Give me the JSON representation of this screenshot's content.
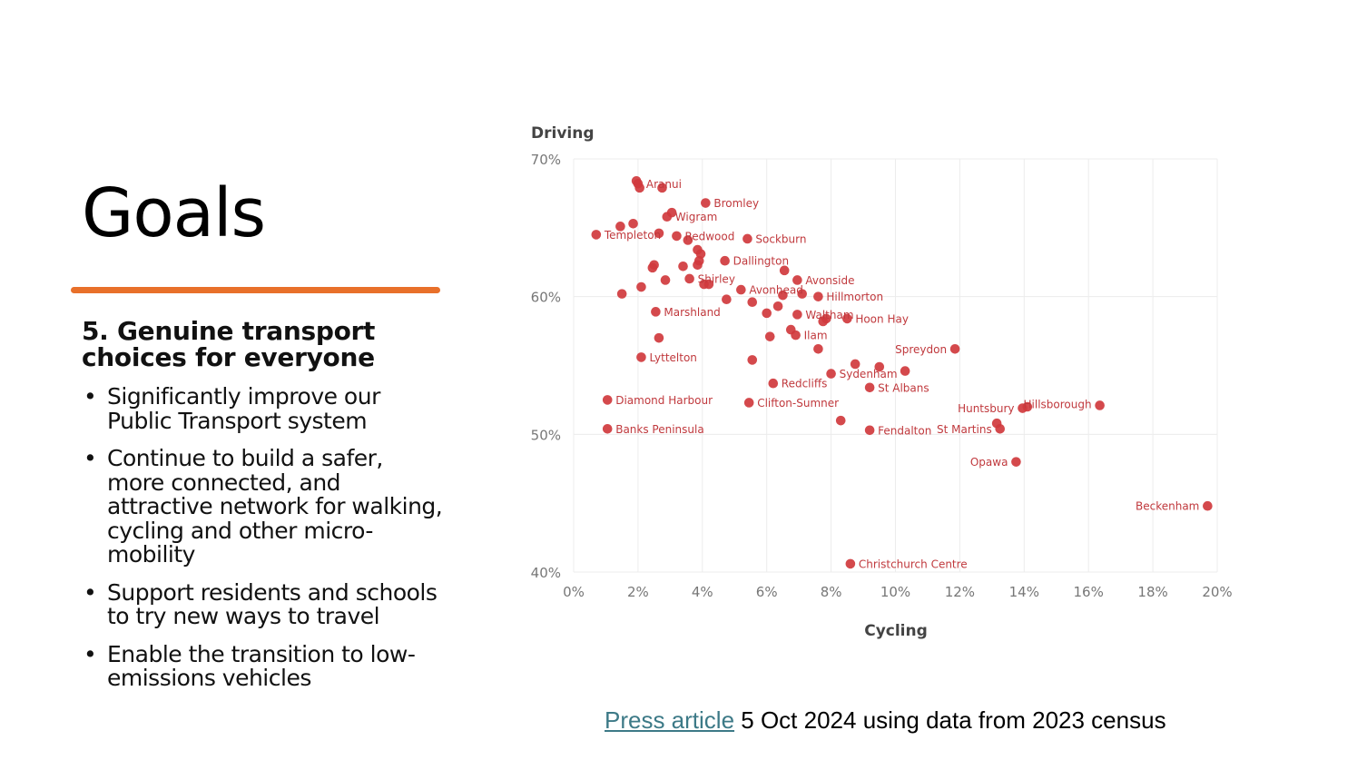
{
  "slide": {
    "title": "Goals",
    "accent_color": "#e8702a",
    "subheading": "5. Genuine transport choices for everyone",
    "bullets": [
      "Significantly improve our Public Transport system",
      "Continue to build a safer, more connected, and attractive network for walking, cycling and other micro-mobility",
      "Support residents and schools to try new ways to travel",
      "Enable the transition to low-emissions vehicles"
    ],
    "bullet_char": "•",
    "footer": {
      "link_text": "Press article",
      "rest_text": " 5 Oct 2024 using data from 2023 census",
      "link_color": "#3d7a87"
    }
  },
  "chart_data": {
    "type": "scatter",
    "title": "",
    "xlabel": "Cycling",
    "ylabel": "Driving",
    "xlim": [
      0,
      20
    ],
    "ylim": [
      40,
      70
    ],
    "x_ticks": [
      0,
      2,
      4,
      6,
      8,
      10,
      12,
      14,
      16,
      18,
      20
    ],
    "x_tick_labels": [
      "0%",
      "2%",
      "4%",
      "6%",
      "8%",
      "10%",
      "12%",
      "14%",
      "16%",
      "18%",
      "20%"
    ],
    "y_ticks": [
      40,
      50,
      60,
      70
    ],
    "y_tick_labels": [
      "40%",
      "50%",
      "60%",
      "70%"
    ],
    "grid": true,
    "marker_color": "#d0393d",
    "label_color": "#c0393d",
    "points": [
      {
        "label": "Aranui",
        "x": 2.0,
        "y": 68.2,
        "label_side": "right"
      },
      {
        "label": "",
        "x": 1.95,
        "y": 68.4
      },
      {
        "label": "",
        "x": 2.05,
        "y": 67.9
      },
      {
        "label": "",
        "x": 2.75,
        "y": 67.9
      },
      {
        "label": "Bromley",
        "x": 4.1,
        "y": 66.8,
        "label_side": "right"
      },
      {
        "label": "Wigram",
        "x": 2.9,
        "y": 65.8,
        "label_side": "right"
      },
      {
        "label": "",
        "x": 3.05,
        "y": 66.1
      },
      {
        "label": "",
        "x": 1.45,
        "y": 65.1
      },
      {
        "label": "",
        "x": 1.85,
        "y": 65.3
      },
      {
        "label": "Templeton",
        "x": 0.7,
        "y": 64.5,
        "label_side": "right"
      },
      {
        "label": "",
        "x": 2.65,
        "y": 64.6
      },
      {
        "label": "Redwood",
        "x": 3.2,
        "y": 64.4,
        "label_side": "right"
      },
      {
        "label": "",
        "x": 3.55,
        "y": 64.1
      },
      {
        "label": "Sockburn",
        "x": 5.4,
        "y": 64.2,
        "label_side": "right"
      },
      {
        "label": "",
        "x": 3.85,
        "y": 63.4
      },
      {
        "label": "",
        "x": 3.95,
        "y": 63.1
      },
      {
        "label": "",
        "x": 3.9,
        "y": 62.6
      },
      {
        "label": "",
        "x": 3.85,
        "y": 62.3
      },
      {
        "label": "Dallington",
        "x": 4.7,
        "y": 62.6,
        "label_side": "right"
      },
      {
        "label": "",
        "x": 2.5,
        "y": 62.3
      },
      {
        "label": "",
        "x": 2.45,
        "y": 62.1
      },
      {
        "label": "",
        "x": 3.4,
        "y": 62.2
      },
      {
        "label": "",
        "x": 6.55,
        "y": 61.9
      },
      {
        "label": "Shirley",
        "x": 3.6,
        "y": 61.3,
        "label_side": "right"
      },
      {
        "label": "",
        "x": 2.85,
        "y": 61.2
      },
      {
        "label": "",
        "x": 4.2,
        "y": 60.9
      },
      {
        "label": "",
        "x": 4.05,
        "y": 60.9
      },
      {
        "label": "Avonside",
        "x": 6.95,
        "y": 61.2,
        "label_side": "right"
      },
      {
        "label": "",
        "x": 2.1,
        "y": 60.7
      },
      {
        "label": "",
        "x": 1.5,
        "y": 60.2
      },
      {
        "label": "Avonhead",
        "x": 5.2,
        "y": 60.5,
        "label_side": "right"
      },
      {
        "label": "",
        "x": 6.5,
        "y": 60.1
      },
      {
        "label": "",
        "x": 7.1,
        "y": 60.2
      },
      {
        "label": "Hillmorton",
        "x": 7.6,
        "y": 60.0,
        "label_side": "right"
      },
      {
        "label": "",
        "x": 4.75,
        "y": 59.8
      },
      {
        "label": "",
        "x": 5.55,
        "y": 59.6
      },
      {
        "label": "",
        "x": 6.35,
        "y": 59.3
      },
      {
        "label": "Marshland",
        "x": 2.55,
        "y": 58.9,
        "label_side": "right"
      },
      {
        "label": "",
        "x": 6.0,
        "y": 58.8
      },
      {
        "label": "Waltham",
        "x": 6.95,
        "y": 58.7,
        "label_side": "right"
      },
      {
        "label": "",
        "x": 7.75,
        "y": 58.2
      },
      {
        "label": "",
        "x": 7.85,
        "y": 58.4
      },
      {
        "label": "Hoon Hay",
        "x": 8.5,
        "y": 58.4,
        "label_side": "right"
      },
      {
        "label": "",
        "x": 6.75,
        "y": 57.6
      },
      {
        "label": "Ilam",
        "x": 6.9,
        "y": 57.2,
        "label_side": "right"
      },
      {
        "label": "",
        "x": 6.1,
        "y": 57.1
      },
      {
        "label": "",
        "x": 2.65,
        "y": 57.0
      },
      {
        "label": "",
        "x": 7.6,
        "y": 56.2
      },
      {
        "label": "Spreydon",
        "x": 11.85,
        "y": 56.2,
        "label_side": "left"
      },
      {
        "label": "Lyttelton",
        "x": 2.1,
        "y": 55.6,
        "label_side": "right"
      },
      {
        "label": "",
        "x": 5.55,
        "y": 55.4
      },
      {
        "label": "",
        "x": 8.75,
        "y": 55.1
      },
      {
        "label": "",
        "x": 9.5,
        "y": 54.9
      },
      {
        "label": "Sydenham",
        "x": 8.0,
        "y": 54.4,
        "label_side": "right"
      },
      {
        "label": "",
        "x": 10.3,
        "y": 54.6
      },
      {
        "label": "Redcliffs",
        "x": 6.2,
        "y": 53.7,
        "label_side": "right"
      },
      {
        "label": "St Albans",
        "x": 9.2,
        "y": 53.4,
        "label_side": "right"
      },
      {
        "label": "Diamond Harbour",
        "x": 1.05,
        "y": 52.5,
        "label_side": "right"
      },
      {
        "label": "Clifton-Sumner",
        "x": 5.45,
        "y": 52.3,
        "label_side": "right"
      },
      {
        "label": "Hillsborough",
        "x": 16.35,
        "y": 52.1,
        "label_side": "left-above"
      },
      {
        "label": "Huntsbury",
        "x": 13.95,
        "y": 51.9,
        "label_side": "left"
      },
      {
        "label": "",
        "x": 14.1,
        "y": 52.0
      },
      {
        "label": "",
        "x": 8.3,
        "y": 51.0
      },
      {
        "label": "",
        "x": 13.15,
        "y": 50.8
      },
      {
        "label": "St Martins",
        "x": 13.25,
        "y": 50.4,
        "label_side": "left"
      },
      {
        "label": "Banks Peninsula",
        "x": 1.05,
        "y": 50.4,
        "label_side": "right"
      },
      {
        "label": "Fendalton",
        "x": 9.2,
        "y": 50.3,
        "label_side": "right"
      },
      {
        "label": "Opawa",
        "x": 13.75,
        "y": 48.0,
        "label_side": "left"
      },
      {
        "label": "Beckenham",
        "x": 19.7,
        "y": 44.8,
        "label_side": "left"
      },
      {
        "label": "Christchurch Centre",
        "x": 8.6,
        "y": 40.6,
        "label_side": "right"
      }
    ]
  }
}
